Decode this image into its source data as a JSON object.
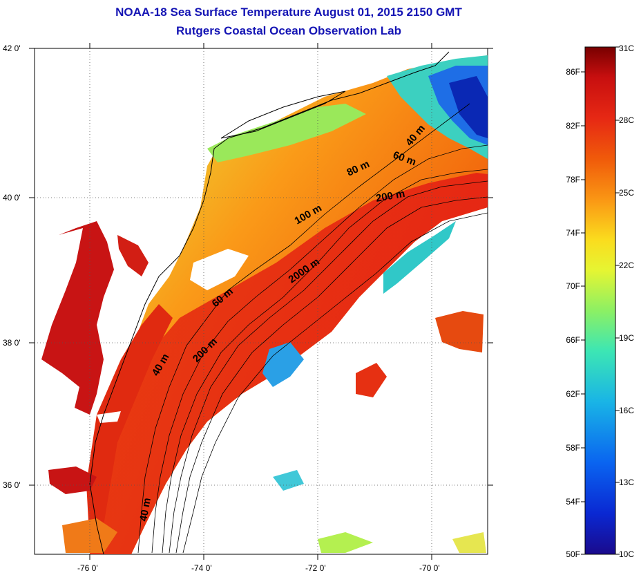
{
  "header": {
    "title": "NOAA-18 Sea Surface Temperature August 01, 2015 2150 GMT",
    "subtitle": "Rutgers Coastal Ocean Observation Lab"
  },
  "map": {
    "lat_ticks": [
      "42 0'",
      "40 0'",
      "38 0'",
      "36 0'"
    ],
    "lon_ticks": [
      "-76 0'",
      "-74 0'",
      "-72 0'",
      "-70 0'"
    ],
    "contour_labels": [
      "40 m",
      "60 m",
      "200 m",
      "80 m",
      "100 m",
      "2000 m",
      "60 m",
      "200 m",
      "40 m",
      "40 m"
    ],
    "land_color": "#ffffff",
    "no_data_color": "#ffffff"
  },
  "colorbar": {
    "fahrenheit_labels": [
      "86F",
      "82F",
      "78F",
      "74F",
      "70F",
      "66F",
      "62F",
      "58F",
      "54F",
      "50F"
    ],
    "celsius_labels": [
      "31C",
      "28C",
      "25C",
      "22C",
      "19C",
      "16C",
      "13C",
      "10C"
    ],
    "range_c": [
      10,
      31
    ],
    "colors": [
      "#1a0a8c",
      "#0a28d2",
      "#0a64f0",
      "#19b4e6",
      "#3ce6b4",
      "#8cf064",
      "#e6f532",
      "#fadc1e",
      "#fa9614",
      "#f05a0a",
      "#e62814",
      "#c80f0f",
      "#780000"
    ]
  }
}
